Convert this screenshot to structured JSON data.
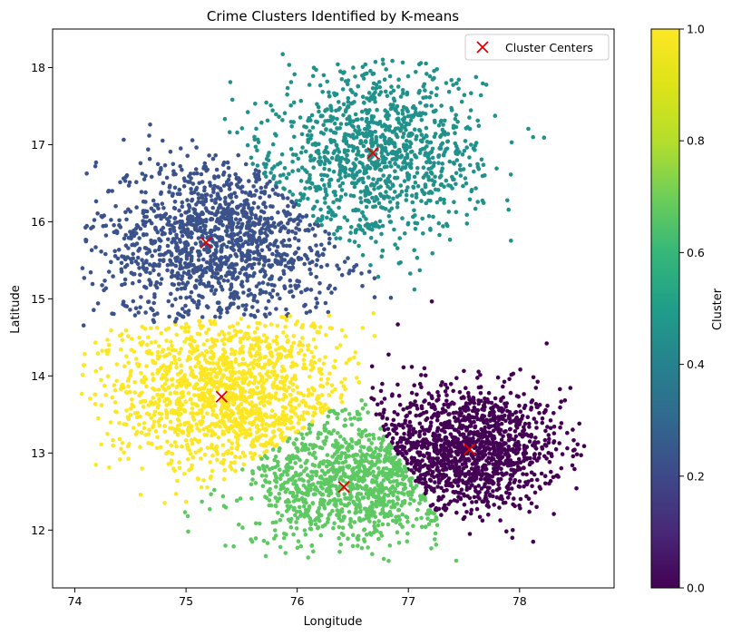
{
  "chart_data": {
    "type": "scatter",
    "title": "Crime Clusters Identified by K-means",
    "xlabel": "Longitude",
    "ylabel": "Latitude",
    "xlim": [
      73.8,
      78.85
    ],
    "ylim": [
      11.25,
      18.5
    ],
    "xticks": [
      74,
      75,
      76,
      77,
      78
    ],
    "yticks": [
      12,
      13,
      14,
      15,
      16,
      17,
      18
    ],
    "grid": false,
    "legend": {
      "placement": "top-right",
      "entries": [
        "Cluster Centers"
      ]
    },
    "colorbar": {
      "label": "Cluster",
      "range": [
        0,
        1
      ],
      "ticks": [
        0.0,
        0.2,
        0.4,
        0.6,
        0.8,
        1.0
      ],
      "tick_labels": [
        "0.0",
        "0.2",
        "0.4",
        "0.6",
        "0.8",
        "1.0"
      ],
      "colormap": "viridis"
    },
    "colors": {
      "cluster_0": "#440154",
      "cluster_1": "#3b528b",
      "cluster_2": "#21918c",
      "cluster_3": "#5ec962",
      "cluster_4": "#fde725",
      "centers": "#e00000"
    },
    "cluster_centers": [
      {
        "cluster": 0,
        "x": 77.55,
        "y": 13.05
      },
      {
        "cluster": 1,
        "x": 75.18,
        "y": 15.73
      },
      {
        "cluster": 2,
        "x": 76.68,
        "y": 16.89
      },
      {
        "cluster": 3,
        "x": 76.42,
        "y": 12.56
      },
      {
        "cluster": 4,
        "x": 75.32,
        "y": 13.73
      }
    ],
    "series": [
      {
        "cluster": 0,
        "value": 0.0,
        "center": [
          77.55,
          13.05
        ],
        "spread": [
          0.42,
          0.4
        ],
        "n": 1400
      },
      {
        "cluster": 1,
        "value": 0.25,
        "center": [
          75.3,
          15.75
        ],
        "spread": [
          0.55,
          0.55
        ],
        "n": 1500
      },
      {
        "cluster": 2,
        "value": 0.5,
        "center": [
          76.75,
          16.9
        ],
        "spread": [
          0.45,
          0.55
        ],
        "n": 1100
      },
      {
        "cluster": 3,
        "value": 0.75,
        "center": [
          76.45,
          12.55
        ],
        "spread": [
          0.42,
          0.38
        ],
        "n": 900
      },
      {
        "cluster": 4,
        "value": 1.0,
        "center": [
          75.4,
          13.75
        ],
        "spread": [
          0.55,
          0.5
        ],
        "n": 1500
      }
    ]
  }
}
